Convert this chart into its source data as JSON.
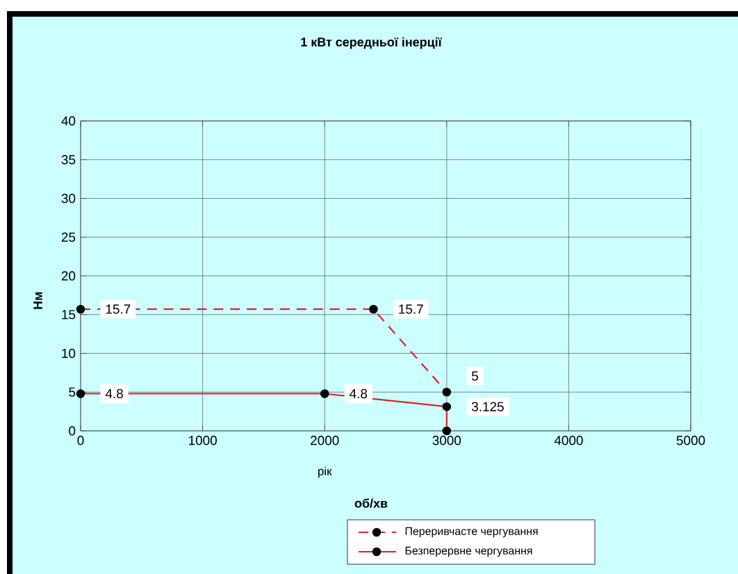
{
  "chart_data": {
    "type": "line",
    "title": "1 кВт середньої інерції",
    "xlabel": "об/хв",
    "ylabel": "Нм",
    "annotations": [
      "рік"
    ],
    "series": [
      {
        "name": "Переривчасте чергування",
        "color": "#e0202a",
        "line_style": "dashed",
        "x": [
          0,
          2400,
          3000
        ],
        "values": [
          15.7,
          15.7,
          5
        ],
        "value_labels": [
          "15.7",
          "15.7",
          "5"
        ]
      },
      {
        "name": "Безперервне чергування",
        "color": "#e0202a",
        "line_style": "solid",
        "x": [
          0,
          2000,
          3000,
          3000
        ],
        "values": [
          4.8,
          4.8,
          3.125,
          0
        ],
        "value_labels": [
          "4.8",
          "4.8",
          "3.125",
          null
        ]
      }
    ],
    "marker": "circle",
    "grid": true,
    "legend": "bottom",
    "xlim": [
      0,
      5000
    ],
    "xticks": [
      0,
      1000,
      2000,
      3000,
      4000,
      5000
    ],
    "ylim": [
      0,
      40
    ],
    "yticks": [
      0,
      5,
      10,
      15,
      20,
      25,
      30,
      35,
      40
    ]
  }
}
